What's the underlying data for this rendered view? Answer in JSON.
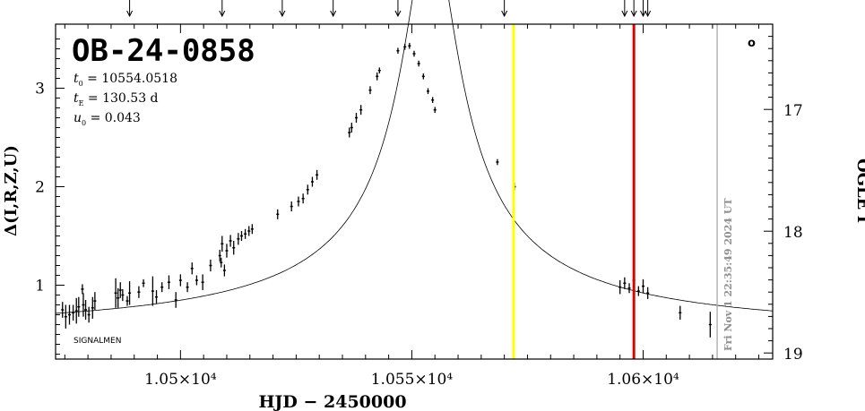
{
  "chart_data": {
    "type": "scatter",
    "title": "OB-24-0858",
    "params": [
      {
        "sym": "t",
        "sub": "0",
        "value": "= 10554.0518"
      },
      {
        "sym": "t",
        "sub": "E",
        "value": "= 130.53 d"
      },
      {
        "sym": "u",
        "sub": "0",
        "value": "= 0.043"
      }
    ],
    "xlabel": "HJD − 2450000",
    "ylabel_left": "Δ(I,R,Z,U)",
    "ylabel_right": "OGLE I",
    "corner_label": "SIGNALMEN",
    "corner_symbol": "o",
    "date_label": "Fri Nov  1 22:35:49 2024 UT",
    "xlim": [
      10473,
      10628
    ],
    "ylim": [
      0.25,
      3.65
    ],
    "right_ylim": [
      19.05,
      16.3
    ],
    "x_ticks": [
      {
        "value": 10500,
        "label": "1.05×10⁴"
      },
      {
        "value": 10550,
        "label": "1.055×10⁴"
      },
      {
        "value": 10600,
        "label": "1.06×10⁴"
      }
    ],
    "y_ticks": [
      {
        "value": 1,
        "label": "1"
      },
      {
        "value": 2,
        "label": "2"
      },
      {
        "value": 3,
        "label": "3"
      }
    ],
    "right_ticks": [
      {
        "value": 17,
        "label": "17"
      },
      {
        "value": 18,
        "label": "18"
      },
      {
        "value": 19,
        "label": "19"
      }
    ],
    "vertical_lines": [
      {
        "x": 10572,
        "color": "#ffff00"
      },
      {
        "x": 10598,
        "color": "#e00000"
      },
      {
        "x": 10616,
        "color": "#a0a0a0"
      }
    ],
    "top_arrows_x": [
      10489,
      10509,
      10522,
      10533,
      10547,
      10570,
      10596,
      10598,
      10600,
      10601
    ],
    "model": {
      "t0": 10554.0518,
      "tE": 130.53,
      "u0": 0.043,
      "fs": 0.185,
      "base": 0.56
    },
    "points": [
      [
        10474.5,
        0.75,
        0.08
      ],
      [
        10475.2,
        0.68,
        0.12
      ],
      [
        10476.0,
        0.7,
        0.1
      ],
      [
        10476.8,
        0.72,
        0.08
      ],
      [
        10477.5,
        0.74,
        0.13
      ],
      [
        10478.0,
        0.78,
        0.1
      ],
      [
        10479.0,
        0.8,
        0.12
      ],
      [
        10479.5,
        0.75,
        0.1
      ],
      [
        10480.2,
        0.7,
        0.08
      ],
      [
        10481.0,
        0.77,
        0.11
      ],
      [
        10481.5,
        0.84,
        0.09
      ],
      [
        10478.8,
        0.96,
        0.05
      ],
      [
        10486.0,
        0.92,
        0.15
      ],
      [
        10486.5,
        0.87,
        0.1
      ],
      [
        10487.0,
        0.95,
        0.08
      ],
      [
        10487.5,
        0.9,
        0.06
      ],
      [
        10488.5,
        0.84,
        0.05
      ],
      [
        10489.0,
        0.92,
        0.12
      ],
      [
        10491.0,
        0.93,
        0.06
      ],
      [
        10492.0,
        1.02,
        0.04
      ],
      [
        10494.0,
        0.94,
        0.15
      ],
      [
        10494.8,
        0.88,
        0.07
      ],
      [
        10496.0,
        0.98,
        0.05
      ],
      [
        10497.5,
        1.03,
        0.07
      ],
      [
        10499.0,
        0.85,
        0.08
      ],
      [
        10500.0,
        1.05,
        0.06
      ],
      [
        10501.5,
        0.98,
        0.05
      ],
      [
        10502.5,
        1.17,
        0.06
      ],
      [
        10503.5,
        1.05,
        0.05
      ],
      [
        10504.8,
        1.03,
        0.08
      ],
      [
        10506.5,
        1.2,
        0.06
      ],
      [
        10508.5,
        1.3,
        0.06
      ],
      [
        10509.0,
        1.42,
        0.08
      ],
      [
        10510.0,
        1.35,
        0.07
      ],
      [
        10510.8,
        1.45,
        0.06
      ],
      [
        10511.5,
        1.38,
        0.07
      ],
      [
        10512.5,
        1.47,
        0.06
      ],
      [
        10513.2,
        1.5,
        0.05
      ],
      [
        10514.0,
        1.52,
        0.05
      ],
      [
        10514.8,
        1.55,
        0.05
      ],
      [
        10515.5,
        1.57,
        0.05
      ],
      [
        10509.5,
        1.15,
        0.06
      ],
      [
        10508.8,
        1.23,
        0.05
      ],
      [
        10521.0,
        1.72,
        0.05
      ],
      [
        10524.0,
        1.8,
        0.05
      ],
      [
        10525.5,
        1.85,
        0.05
      ],
      [
        10526.5,
        1.88,
        0.05
      ],
      [
        10527.5,
        1.97,
        0.05
      ],
      [
        10528.5,
        2.05,
        0.05
      ],
      [
        10529.5,
        2.12,
        0.05
      ],
      [
        10536.5,
        2.55,
        0.05
      ],
      [
        10537.0,
        2.6,
        0.05
      ],
      [
        10538.0,
        2.7,
        0.05
      ],
      [
        10539.0,
        2.78,
        0.05
      ],
      [
        10541.0,
        2.98,
        0.04
      ],
      [
        10542.5,
        3.12,
        0.04
      ],
      [
        10543.0,
        3.18,
        0.03
      ],
      [
        10547.0,
        3.38,
        0.03
      ],
      [
        10548.5,
        3.42,
        0.03
      ],
      [
        10549.5,
        3.43,
        0.03
      ],
      [
        10550.5,
        3.35,
        0.03
      ],
      [
        10551.5,
        3.25,
        0.03
      ],
      [
        10552.5,
        3.12,
        0.03
      ],
      [
        10553.5,
        2.97,
        0.03
      ],
      [
        10554.5,
        2.88,
        0.03
      ],
      [
        10555.0,
        2.78,
        0.03
      ],
      [
        10568.5,
        2.25,
        0.03
      ],
      [
        10572.2,
        2.0,
        0.04
      ],
      [
        10595.0,
        0.98,
        0.07
      ],
      [
        10596.0,
        1.02,
        0.06
      ],
      [
        10597.0,
        0.97,
        0.05
      ],
      [
        10598.0,
        1.05,
        0.06
      ],
      [
        10599.0,
        0.94,
        0.05
      ],
      [
        10600.0,
        0.99,
        0.07
      ],
      [
        10601.0,
        0.92,
        0.06
      ],
      [
        10608.0,
        0.72,
        0.07
      ],
      [
        10614.5,
        0.6,
        0.13
      ]
    ]
  }
}
